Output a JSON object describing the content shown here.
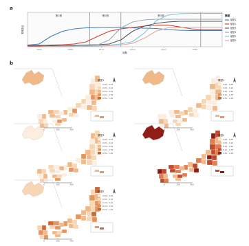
{
  "panel_a": {
    "letter": "a"
  },
  "panel_b": {
    "letter": "b"
  },
  "chart_data": {
    "type": "line",
    "title": "",
    "xlabel": "時期",
    "ylabel": "累積割合",
    "xlim": [
      0,
      100
    ],
    "ylim": [
      0,
      1
    ],
    "x_tick_labels": [
      "2005",
      "2008",
      "2011",
      "2014",
      "2017",
      "2020"
    ],
    "x_tick_values": [
      6,
      22,
      38,
      54,
      70,
      86
    ],
    "phases": [
      {
        "label": "第1期",
        "start": 0,
        "end": 32
      },
      {
        "label": "第2期",
        "start": 32,
        "end": 48
      },
      {
        "label": "第3期",
        "start": 48,
        "end": 89
      }
    ],
    "legend": {
      "title": "類型",
      "placement": "right"
    },
    "series": [
      {
        "name": "類型1",
        "color": "#3a7bbf",
        "x": [
          0,
          6,
          12,
          18,
          24,
          30,
          36,
          42,
          48,
          54,
          60,
          66,
          72,
          78,
          84,
          90,
          96,
          100
        ],
        "values": [
          0.05,
          0.08,
          0.3,
          0.45,
          0.52,
          0.55,
          0.56,
          0.57,
          0.56,
          0.55,
          0.54,
          0.53,
          0.5,
          0.48,
          0.47,
          0.47,
          0.47,
          0.47
        ]
      },
      {
        "name": "類型2",
        "color": "#c8402e",
        "x": [
          0,
          6,
          12,
          18,
          24,
          30,
          36,
          42,
          48,
          54,
          60,
          66,
          72,
          78,
          84,
          90,
          96,
          100
        ],
        "values": [
          0.03,
          0.04,
          0.05,
          0.06,
          0.08,
          0.14,
          0.3,
          0.45,
          0.52,
          0.56,
          0.6,
          0.63,
          0.63,
          0.58,
          0.52,
          0.5,
          0.5,
          0.5
        ]
      },
      {
        "name": "類型3",
        "color": "#555555",
        "x": [
          0,
          6,
          12,
          18,
          24,
          30,
          36,
          42,
          48,
          54,
          60,
          66,
          72,
          78,
          84,
          90,
          96,
          100
        ],
        "values": [
          0.02,
          0.02,
          0.03,
          0.03,
          0.04,
          0.05,
          0.06,
          0.08,
          0.2,
          0.45,
          0.6,
          0.68,
          0.72,
          0.74,
          0.74,
          0.74,
          0.74,
          0.74
        ]
      },
      {
        "name": "類型4",
        "color": "#9aa8b8",
        "x": [
          0,
          6,
          12,
          18,
          24,
          30,
          36,
          42,
          48,
          54,
          60,
          66,
          72,
          78,
          84,
          90,
          96,
          100
        ],
        "values": [
          0.0,
          0.0,
          0.01,
          0.02,
          0.02,
          0.03,
          0.05,
          0.2,
          0.55,
          0.72,
          0.78,
          0.8,
          0.8,
          0.8,
          0.8,
          0.8,
          0.8,
          0.8
        ]
      },
      {
        "name": "類型5",
        "color": "#7fc7d8",
        "x": [
          0,
          6,
          12,
          18,
          24,
          30,
          36,
          42,
          48,
          54,
          60,
          66,
          72,
          78,
          84,
          90,
          96,
          100
        ],
        "values": [
          0.0,
          0.0,
          0.0,
          0.01,
          0.01,
          0.02,
          0.03,
          0.05,
          0.08,
          0.15,
          0.4,
          0.75,
          0.92,
          0.96,
          0.97,
          0.97,
          0.97,
          0.97
        ]
      },
      {
        "name": "類型6",
        "color": "#e3a6a0",
        "x": [
          0,
          6,
          12,
          18,
          24,
          30,
          36,
          42,
          48,
          54,
          60,
          66,
          72,
          78,
          84,
          90,
          96,
          100
        ],
        "values": [
          0.0,
          0.0,
          0.0,
          0.0,
          0.01,
          0.01,
          0.02,
          0.03,
          0.05,
          0.1,
          0.25,
          0.45,
          0.55,
          0.56,
          0.57,
          0.57,
          0.57,
          0.57
        ]
      }
    ]
  },
  "maps": [
    {
      "legend_title": "類型1",
      "palette": [
        "#fbeee0",
        "#f6d6b4",
        "#efb98a",
        "#e2955e",
        "#c96a3a"
      ],
      "class_labels": [
        "0.00 - 0.05",
        "0.05 - 0.10",
        "0.10 - 0.20",
        "0.20 - 0.30",
        "0.30 - 1.00"
      ],
      "scale_labels": [
        "0",
        "200",
        "400"
      ],
      "fill_level": 0.35,
      "hokkaido_level": 0.45
    },
    {
      "legend_title": "類型2",
      "palette": [
        "#fbeee0",
        "#f6d6b4",
        "#efb98a",
        "#e2955e",
        "#c96a3a"
      ],
      "class_labels": [
        "0.00 - 0.05",
        "0.05 - 0.10",
        "0.10 - 0.20",
        "0.20 - 0.30",
        "0.30 - 1.00"
      ],
      "scale_labels": [
        "0",
        "200",
        "400"
      ],
      "fill_level": 0.3,
      "hokkaido_level": 0.5
    },
    {
      "legend_title": "類型3",
      "palette": [
        "#fbeee0",
        "#f6d6b4",
        "#efb98a",
        "#e2955e",
        "#c96a3a"
      ],
      "class_labels": [
        "0.00 - 0.05",
        "0.05 - 0.10",
        "0.10 - 0.20",
        "0.20 - 0.30",
        "0.30 - 1.00"
      ],
      "scale_labels": [
        "0",
        "200",
        "400"
      ],
      "fill_level": 0.35,
      "hokkaido_level": 0.15
    },
    {
      "legend_title": "類型4",
      "palette": [
        "#fbe6d6",
        "#f2b98f",
        "#e07f4f",
        "#c24a2a",
        "#8f1d18"
      ],
      "class_labels": [
        "0.00 - 0.05",
        "0.05 - 0.10",
        "0.10 - 0.20",
        "0.20 - 0.30",
        "0.30 - 1.00"
      ],
      "scale_labels": [
        "0",
        "200",
        "400"
      ],
      "fill_level": 0.55,
      "hokkaido_level": 0.95
    },
    {
      "legend_title": "類型5",
      "palette": [
        "#fbeee0",
        "#f6d6b4",
        "#efb98a",
        "#e2955e",
        "#c96a3a"
      ],
      "class_labels": [
        "0.00 - 0.05",
        "0.05 - 0.10",
        "0.10 - 0.20",
        "0.20 - 0.30",
        "0.30 - 1.00"
      ],
      "scale_labels": [
        "0",
        "200",
        "400"
      ],
      "fill_level": 0.55,
      "hokkaido_level": 0.25
    }
  ]
}
